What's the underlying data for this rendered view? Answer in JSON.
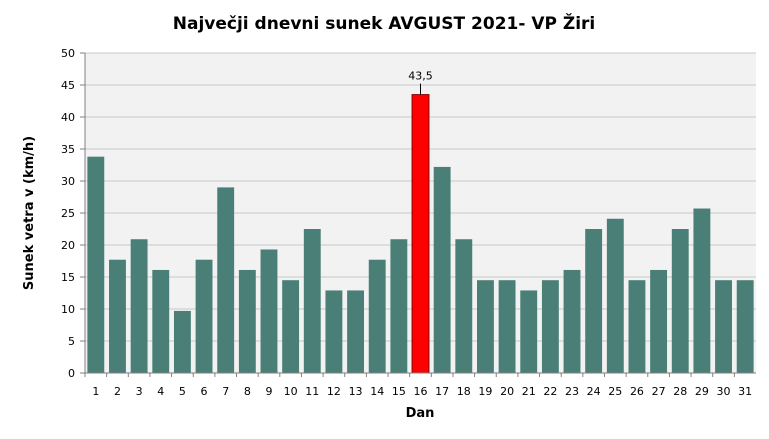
{
  "chart_data": {
    "type": "bar",
    "title": "Največji dnevni sunek AVGUST 2021- VP Žiri",
    "xlabel": "Dan",
    "ylabel": "Sunek vetra  v (km/h)",
    "ylim": [
      0,
      50
    ],
    "yticks": [
      0,
      5,
      10,
      15,
      20,
      25,
      30,
      35,
      40,
      45,
      50
    ],
    "grid": true,
    "categories": [
      "1",
      "2",
      "3",
      "4",
      "5",
      "6",
      "7",
      "8",
      "9",
      "10",
      "11",
      "12",
      "13",
      "14",
      "15",
      "16",
      "17",
      "18",
      "19",
      "20",
      "21",
      "22",
      "23",
      "24",
      "25",
      "26",
      "27",
      "28",
      "29",
      "30",
      "31"
    ],
    "values": [
      33.8,
      17.7,
      20.9,
      16.1,
      9.7,
      17.7,
      29.0,
      16.1,
      19.3,
      14.5,
      22.5,
      12.9,
      12.9,
      17.7,
      20.9,
      43.5,
      32.2,
      20.9,
      14.5,
      14.5,
      12.9,
      14.5,
      16.1,
      22.5,
      24.1,
      14.5,
      16.1,
      22.5,
      25.7,
      14.5,
      14.5
    ],
    "highlight_index": 15,
    "data_labels": [
      {
        "index": 15,
        "text": "43,5"
      }
    ],
    "colors": {
      "bar": "#4a7f78",
      "highlight": "#ff0000",
      "plot_bg": "#f2f2f2",
      "grid": "#c8c8c8"
    }
  }
}
